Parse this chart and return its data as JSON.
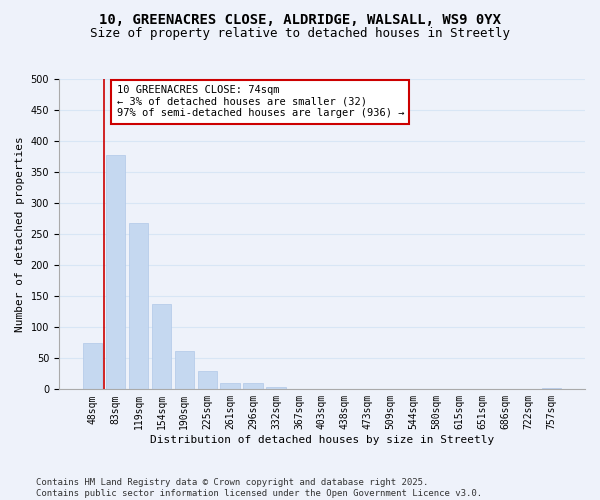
{
  "title": "10, GREENACRES CLOSE, ALDRIDGE, WALSALL, WS9 0YX",
  "subtitle": "Size of property relative to detached houses in Streetly",
  "xlabel": "Distribution of detached houses by size in Streetly",
  "ylabel": "Number of detached properties",
  "bar_values": [
    75,
    378,
    268,
    137,
    62,
    29,
    10,
    10,
    4,
    0,
    0,
    0,
    0,
    0,
    0,
    0,
    0,
    0,
    0,
    0,
    2
  ],
  "bar_labels": [
    "48sqm",
    "83sqm",
    "119sqm",
    "154sqm",
    "190sqm",
    "225sqm",
    "261sqm",
    "296sqm",
    "332sqm",
    "367sqm",
    "403sqm",
    "438sqm",
    "473sqm",
    "509sqm",
    "544sqm",
    "580sqm",
    "615sqm",
    "651sqm",
    "686sqm",
    "722sqm",
    "757sqm"
  ],
  "bar_color": "#c5d8f0",
  "bar_edge_color": "#b0c8e8",
  "grid_color": "#d8e6f5",
  "background_color": "#eef2fa",
  "vline_x": 0.5,
  "vline_color": "#cc0000",
  "annotation_text": "10 GREENACRES CLOSE: 74sqm\n← 3% of detached houses are smaller (32)\n97% of semi-detached houses are larger (936) →",
  "annotation_box_facecolor": "#ffffff",
  "annotation_box_edgecolor": "#cc0000",
  "ylim": [
    0,
    500
  ],
  "yticks": [
    0,
    50,
    100,
    150,
    200,
    250,
    300,
    350,
    400,
    450,
    500
  ],
  "footer_line1": "Contains HM Land Registry data © Crown copyright and database right 2025.",
  "footer_line2": "Contains public sector information licensed under the Open Government Licence v3.0.",
  "title_fontsize": 10,
  "subtitle_fontsize": 9,
  "axis_label_fontsize": 8,
  "tick_fontsize": 7,
  "annotation_fontsize": 7.5,
  "footer_fontsize": 6.5,
  "ylabel_fontsize": 8
}
